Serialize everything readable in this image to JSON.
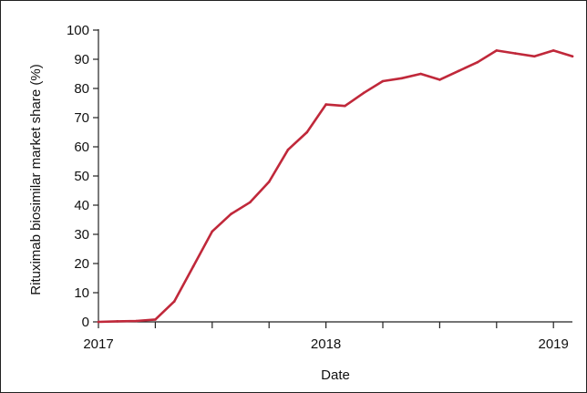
{
  "chart_data": {
    "type": "line",
    "title": "",
    "xlabel": "Date",
    "ylabel": "Rituximab biosimilar market share (%)",
    "ylim": [
      0,
      100
    ],
    "yticks": [
      0,
      10,
      20,
      30,
      40,
      50,
      60,
      70,
      80,
      90,
      100
    ],
    "x_tick_labels": [
      {
        "date": "2017-01",
        "label": "2017"
      },
      {
        "date": "2018-01",
        "label": "2018"
      },
      {
        "date": "2019-01",
        "label": "2019"
      }
    ],
    "x_minor_ticks": [
      "2017-01",
      "2017-04",
      "2017-07",
      "2017-10",
      "2018-01",
      "2018-04",
      "2018-07",
      "2018-10",
      "2019-01"
    ],
    "xlim": [
      "2017-01",
      "2019-02"
    ],
    "grid": false,
    "line_color": "#c0283a",
    "series": [
      {
        "x": [
          "2017-01",
          "2017-02",
          "2017-03",
          "2017-04",
          "2017-05",
          "2017-06",
          "2017-07",
          "2017-08",
          "2017-09",
          "2017-10",
          "2017-11",
          "2017-12",
          "2018-01",
          "2018-02",
          "2018-03",
          "2018-04",
          "2018-05",
          "2018-06",
          "2018-07",
          "2018-08",
          "2018-09",
          "2018-10",
          "2018-11",
          "2018-12",
          "2019-01",
          "2019-02"
        ],
        "values": [
          0,
          0.2,
          0.3,
          0.8,
          7,
          19,
          31,
          37,
          41,
          48,
          59,
          65,
          74.5,
          74,
          78.5,
          82.5,
          83.5,
          85,
          83,
          86,
          89,
          93,
          92,
          91,
          93,
          91
        ]
      }
    ]
  }
}
